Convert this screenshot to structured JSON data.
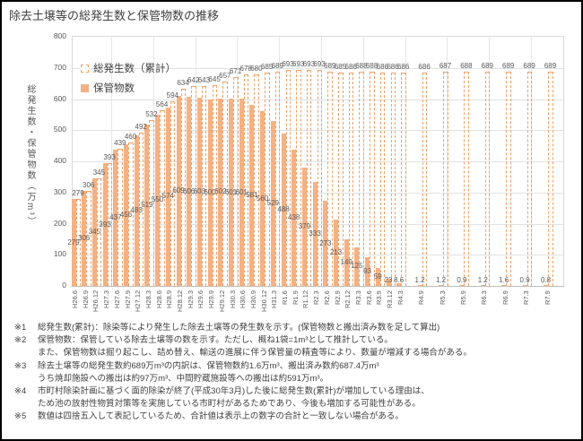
{
  "title": "除去土壌等の総発生数と保管物数の推移",
  "chart_data": {
    "type": "bar",
    "title": "除去土壌等の総発生数と保管物数の推移",
    "ylabel": "総発生数・保管物数（万m³）",
    "xlabel": "",
    "ylim": [
      0,
      800
    ],
    "yticks": [
      0,
      100,
      200,
      300,
      400,
      500,
      600,
      700,
      800
    ],
    "grid": "light gray horizontal lines every 100, light vertical year lines",
    "legend_position": "top-left inside plot",
    "categories": [
      "H26.6",
      "H26.9",
      "H26.12",
      "H27.3",
      "H27.6",
      "H27.9",
      "H27.12",
      "H28.3",
      "H28.6",
      "H28.9",
      "H28.12",
      "H29.3",
      "H29.6",
      "H29.9",
      "H29.12",
      "H30.3",
      "H30.6",
      "H30.9",
      "H30.12",
      "H31.3",
      "R1.6",
      "R1.9",
      "R1.12",
      "R2.3",
      "R2.6",
      "R2.9",
      "R2.12",
      "R3.3",
      "R3.6",
      "R3.9",
      "R3.12",
      "R4.3",
      "R4.9",
      "R5.3",
      "R5.9",
      "R6.3",
      "R6.9",
      "R7.3",
      "R7.9"
    ],
    "month_offsets": [
      0,
      3,
      6,
      9,
      12,
      15,
      18,
      21,
      24,
      27,
      30,
      33,
      36,
      39,
      42,
      45,
      48,
      51,
      54,
      57,
      60,
      63,
      66,
      69,
      72,
      75,
      78,
      81,
      84,
      87,
      90,
      93,
      99,
      105,
      111,
      117,
      123,
      129,
      135
    ],
    "series": [
      {
        "name": "総発生数（累計）",
        "style": "dashed-outline",
        "color": "#efa066",
        "values": [
          279,
          306,
          345,
          393,
          439,
          460,
          492,
          532,
          564,
          594,
          634,
          642,
          643,
          645,
          657,
          671,
          678,
          680,
          685,
          689,
          693,
          693,
          693,
          693,
          689,
          685,
          686,
          688,
          688,
          686,
          686,
          686,
          686,
          687,
          688,
          689,
          689,
          689,
          689
        ]
      },
      {
        "name": "保管物数",
        "style": "solid",
        "color": "#f4b183",
        "values": [
          279,
          306,
          345,
          393,
          437,
          456,
          483,
          519,
          550,
          574,
          609,
          606,
          603,
          600,
          602,
          601,
          601,
          581,
          560,
          529,
          488,
          438,
          379,
          333,
          273,
          213,
          149,
          125,
          93,
          59,
          23,
          8.6,
          1.2,
          1.2,
          0.9,
          1.2,
          1.6,
          0.9,
          0.8
        ]
      }
    ]
  },
  "notes": [
    {
      "marker": "※1",
      "text": "総発生数(累計)：除染等により発生した除去土壌等の発生数を示す。(保管物数と搬出済み数を足して算出)"
    },
    {
      "marker": "※2",
      "text": "保管物数：保管している除去土壌等の数を示す。ただし、概ね1袋=1m³として推計している。"
    },
    {
      "marker": "",
      "text": "また、保管物数は掘り起こし、詰め替え、輸送の進展に伴う保管量の精査等により、数量が増減する場合がある。"
    },
    {
      "marker": "※3",
      "text": "除去土壌等の総発生数約689万m³の内訳は、保管物数約1.6万m³、搬出済み数約687.4万m³"
    },
    {
      "marker": "",
      "text": "うち焼却施設への搬出は約97万m³、中間貯蔵施設等への搬出は約591万m³。"
    },
    {
      "marker": "※4",
      "text": "市町村除染計画に基づく面的除染が終了(平成30年3月)した後に総発生数(累計)が増加している理由は、"
    },
    {
      "marker": "",
      "text": "ため池の放射性物質対策等を実施している市町村があるためであり、今後も増加する可能性がある。"
    },
    {
      "marker": "※5",
      "text": "数値は四捨五入して表記しているため、合計値は表示上の数字の合計と一致しない場合がある。"
    }
  ],
  "colors": {
    "bar_fill": "#f4b183",
    "bar_outline": "#efa066",
    "gridline": "#e2e2e2",
    "axis_text": "#595959",
    "body_text": "#404040",
    "frame_border": "#000000"
  }
}
